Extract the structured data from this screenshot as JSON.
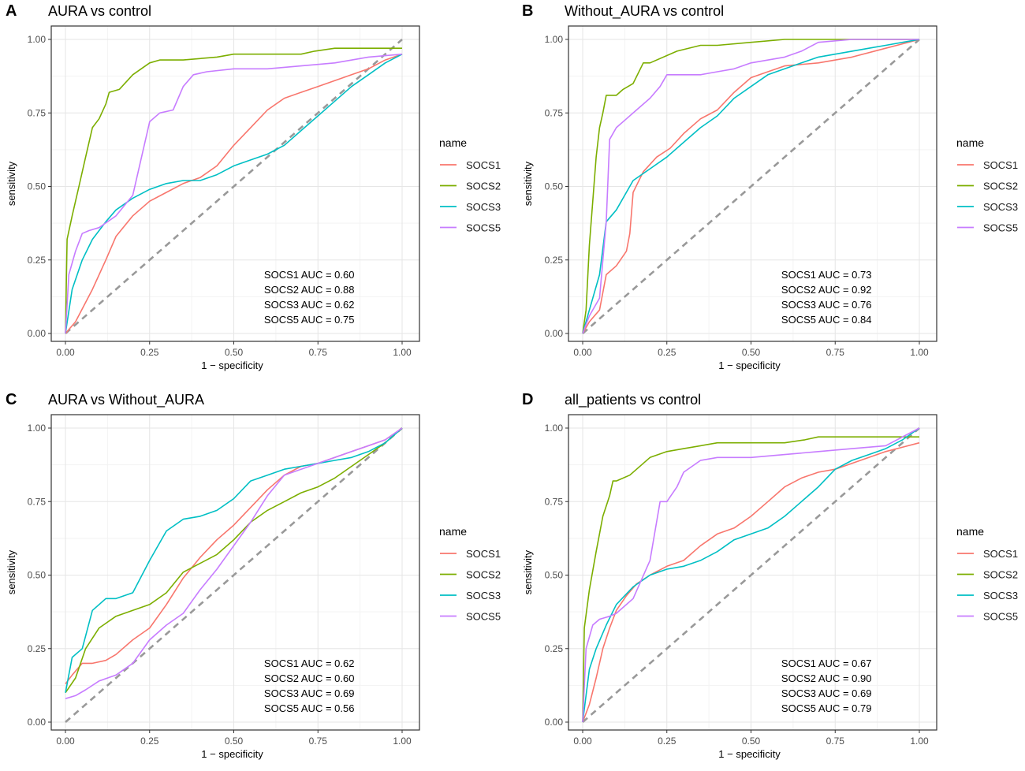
{
  "figure": {
    "panels": [
      {
        "letter": "A",
        "title": "AURA vs control"
      },
      {
        "letter": "B",
        "title": "Without_AURA vs control"
      },
      {
        "letter": "C",
        "title": "AURA vs Without_AURA"
      },
      {
        "letter": "D",
        "title": "all_patients vs control"
      }
    ]
  },
  "chart_data": [
    {
      "type": "line",
      "title": "AURA vs control",
      "xlabel": "1 − specificity",
      "ylabel": "sensitivity",
      "xlim": [
        0,
        1
      ],
      "ylim": [
        0,
        1
      ],
      "xticks": [
        "0.00",
        "0.25",
        "0.50",
        "0.75",
        "1.00"
      ],
      "yticks": [
        "0.00",
        "0.25",
        "0.50",
        "0.75",
        "1.00"
      ],
      "legend": {
        "title": "name",
        "position": "right"
      },
      "diagonal": true,
      "annotations": [
        "SOCS1 AUC = 0.60",
        "SOCS2 AUC = 0.88",
        "SOCS3 AUC = 0.62",
        "SOCS5 AUC = 0.75"
      ],
      "series": [
        {
          "name": "SOCS1",
          "color": "#F8766D",
          "x": [
            0,
            0.03,
            0.08,
            0.12,
            0.15,
            0.2,
            0.25,
            0.3,
            0.35,
            0.4,
            0.45,
            0.5,
            0.55,
            0.6,
            0.65,
            0.7,
            0.75,
            0.8,
            0.85,
            0.9,
            0.95,
            1.0
          ],
          "y": [
            0,
            0.04,
            0.15,
            0.25,
            0.33,
            0.4,
            0.45,
            0.48,
            0.51,
            0.53,
            0.57,
            0.64,
            0.7,
            0.76,
            0.8,
            0.82,
            0.84,
            0.86,
            0.88,
            0.9,
            0.93,
            0.95
          ]
        },
        {
          "name": "SOCS2",
          "color": "#7CAE00",
          "x": [
            0,
            0.005,
            0.02,
            0.04,
            0.06,
            0.08,
            0.1,
            0.12,
            0.13,
            0.16,
            0.2,
            0.25,
            0.28,
            0.35,
            0.45,
            0.5,
            0.6,
            0.7,
            0.74,
            0.8,
            0.9,
            1.0
          ],
          "y": [
            0,
            0.32,
            0.4,
            0.5,
            0.6,
            0.7,
            0.73,
            0.78,
            0.82,
            0.83,
            0.88,
            0.92,
            0.93,
            0.93,
            0.94,
            0.95,
            0.95,
            0.95,
            0.96,
            0.97,
            0.97,
            0.97
          ]
        },
        {
          "name": "SOCS3",
          "color": "#00BFC4",
          "x": [
            0,
            0.02,
            0.05,
            0.08,
            0.12,
            0.15,
            0.2,
            0.25,
            0.3,
            0.35,
            0.4,
            0.45,
            0.5,
            0.55,
            0.6,
            0.65,
            0.7,
            0.75,
            0.8,
            0.85,
            0.9,
            0.95,
            1.0
          ],
          "y": [
            0,
            0.15,
            0.25,
            0.32,
            0.38,
            0.42,
            0.46,
            0.49,
            0.51,
            0.52,
            0.52,
            0.54,
            0.57,
            0.59,
            0.61,
            0.64,
            0.69,
            0.74,
            0.79,
            0.84,
            0.88,
            0.92,
            0.95
          ]
        },
        {
          "name": "SOCS5",
          "color": "#C77CFF",
          "x": [
            0,
            0.01,
            0.03,
            0.05,
            0.07,
            0.1,
            0.15,
            0.2,
            0.25,
            0.28,
            0.32,
            0.35,
            0.38,
            0.42,
            0.5,
            0.6,
            0.7,
            0.8,
            0.9,
            1.0
          ],
          "y": [
            0,
            0.2,
            0.28,
            0.34,
            0.35,
            0.36,
            0.4,
            0.47,
            0.72,
            0.75,
            0.76,
            0.84,
            0.88,
            0.89,
            0.9,
            0.9,
            0.91,
            0.92,
            0.94,
            0.95
          ]
        }
      ]
    },
    {
      "type": "line",
      "title": "Without_AURA vs control",
      "xlabel": "1 − specificity",
      "ylabel": "sensitivity",
      "xlim": [
        0,
        1
      ],
      "ylim": [
        0,
        1
      ],
      "xticks": [
        "0.00",
        "0.25",
        "0.50",
        "0.75",
        "1.00"
      ],
      "yticks": [
        "0.00",
        "0.25",
        "0.50",
        "0.75",
        "1.00"
      ],
      "legend": {
        "title": "name",
        "position": "right"
      },
      "diagonal": true,
      "annotations": [
        "SOCS1 AUC = 0.73",
        "SOCS2 AUC = 0.92",
        "SOCS3 AUC = 0.76",
        "SOCS5 AUC = 0.84"
      ],
      "series": [
        {
          "name": "SOCS1",
          "color": "#F8766D",
          "x": [
            0,
            0.02,
            0.05,
            0.07,
            0.1,
            0.13,
            0.14,
            0.15,
            0.18,
            0.22,
            0.26,
            0.3,
            0.35,
            0.4,
            0.45,
            0.5,
            0.55,
            0.6,
            0.7,
            0.8,
            0.9,
            1.0
          ],
          "y": [
            0,
            0.04,
            0.08,
            0.2,
            0.23,
            0.28,
            0.34,
            0.48,
            0.55,
            0.6,
            0.63,
            0.68,
            0.73,
            0.76,
            0.82,
            0.87,
            0.89,
            0.91,
            0.92,
            0.94,
            0.97,
            1.0
          ]
        },
        {
          "name": "SOCS2",
          "color": "#7CAE00",
          "x": [
            0,
            0.01,
            0.02,
            0.03,
            0.04,
            0.05,
            0.06,
            0.07,
            0.1,
            0.12,
            0.15,
            0.18,
            0.2,
            0.28,
            0.35,
            0.4,
            0.5,
            0.6,
            0.7,
            0.8,
            0.9,
            1.0
          ],
          "y": [
            0,
            0.08,
            0.3,
            0.45,
            0.6,
            0.7,
            0.75,
            0.81,
            0.81,
            0.83,
            0.85,
            0.92,
            0.92,
            0.96,
            0.98,
            0.98,
            0.99,
            1.0,
            1.0,
            1.0,
            1.0,
            1.0
          ]
        },
        {
          "name": "SOCS3",
          "color": "#00BFC4",
          "x": [
            0,
            0.02,
            0.05,
            0.07,
            0.1,
            0.15,
            0.2,
            0.25,
            0.3,
            0.35,
            0.4,
            0.45,
            0.5,
            0.55,
            0.6,
            0.65,
            0.7,
            0.75,
            0.8,
            0.85,
            0.9,
            0.95,
            1.0
          ],
          "y": [
            0,
            0.08,
            0.2,
            0.38,
            0.42,
            0.52,
            0.56,
            0.6,
            0.65,
            0.7,
            0.74,
            0.8,
            0.84,
            0.88,
            0.9,
            0.92,
            0.94,
            0.95,
            0.96,
            0.97,
            0.98,
            0.99,
            1.0
          ]
        },
        {
          "name": "SOCS5",
          "color": "#C77CFF",
          "x": [
            0,
            0.02,
            0.05,
            0.07,
            0.08,
            0.1,
            0.13,
            0.16,
            0.2,
            0.23,
            0.25,
            0.3,
            0.35,
            0.4,
            0.45,
            0.5,
            0.6,
            0.65,
            0.7,
            0.8,
            0.9,
            1.0
          ],
          "y": [
            0,
            0.06,
            0.12,
            0.38,
            0.66,
            0.7,
            0.73,
            0.76,
            0.8,
            0.84,
            0.88,
            0.88,
            0.88,
            0.89,
            0.9,
            0.92,
            0.94,
            0.96,
            0.99,
            1.0,
            1.0,
            1.0
          ]
        }
      ]
    },
    {
      "type": "line",
      "title": "AURA vs Without_AURA",
      "xlabel": "1 − specificity",
      "ylabel": "sensitivity",
      "xlim": [
        0,
        1
      ],
      "ylim": [
        0,
        1
      ],
      "xticks": [
        "0.00",
        "0.25",
        "0.50",
        "0.75",
        "1.00"
      ],
      "yticks": [
        "0.00",
        "0.25",
        "0.50",
        "0.75",
        "1.00"
      ],
      "legend": {
        "title": "name",
        "position": "right"
      },
      "diagonal": true,
      "annotations": [
        "SOCS1 AUC = 0.62",
        "SOCS2 AUC = 0.60",
        "SOCS3 AUC = 0.69",
        "SOCS5 AUC = 0.56"
      ],
      "series": [
        {
          "name": "SOCS1",
          "color": "#F8766D",
          "x": [
            0,
            0.02,
            0.05,
            0.08,
            0.12,
            0.15,
            0.2,
            0.25,
            0.3,
            0.35,
            0.4,
            0.45,
            0.5,
            0.55,
            0.6,
            0.65,
            0.7,
            0.75,
            0.8,
            0.85,
            0.9,
            0.95,
            1.0
          ],
          "y": [
            0.13,
            0.16,
            0.2,
            0.2,
            0.21,
            0.23,
            0.28,
            0.32,
            0.4,
            0.49,
            0.56,
            0.62,
            0.67,
            0.73,
            0.79,
            0.84,
            0.87,
            0.88,
            0.9,
            0.92,
            0.94,
            0.96,
            1.0
          ]
        },
        {
          "name": "SOCS2",
          "color": "#7CAE00",
          "x": [
            0,
            0.03,
            0.06,
            0.1,
            0.15,
            0.2,
            0.25,
            0.3,
            0.35,
            0.4,
            0.45,
            0.5,
            0.55,
            0.6,
            0.65,
            0.7,
            0.75,
            0.8,
            0.85,
            0.9,
            0.95,
            1.0
          ],
          "y": [
            0.1,
            0.15,
            0.25,
            0.32,
            0.36,
            0.38,
            0.4,
            0.44,
            0.51,
            0.54,
            0.57,
            0.62,
            0.68,
            0.72,
            0.75,
            0.78,
            0.8,
            0.83,
            0.87,
            0.91,
            0.95,
            1.0
          ]
        },
        {
          "name": "SOCS3",
          "color": "#00BFC4",
          "x": [
            0,
            0.02,
            0.05,
            0.08,
            0.12,
            0.15,
            0.2,
            0.25,
            0.3,
            0.35,
            0.4,
            0.45,
            0.5,
            0.55,
            0.6,
            0.65,
            0.7,
            0.75,
            0.8,
            0.85,
            0.9,
            0.95,
            1.0
          ],
          "y": [
            0.1,
            0.22,
            0.25,
            0.38,
            0.42,
            0.42,
            0.44,
            0.55,
            0.65,
            0.69,
            0.7,
            0.72,
            0.76,
            0.82,
            0.84,
            0.86,
            0.87,
            0.88,
            0.89,
            0.9,
            0.92,
            0.95,
            1.0
          ]
        },
        {
          "name": "SOCS5",
          "color": "#C77CFF",
          "x": [
            0,
            0.03,
            0.06,
            0.1,
            0.15,
            0.2,
            0.25,
            0.3,
            0.35,
            0.4,
            0.45,
            0.5,
            0.55,
            0.6,
            0.65,
            0.7,
            0.75,
            0.8,
            0.85,
            0.9,
            0.95,
            1.0
          ],
          "y": [
            0.08,
            0.09,
            0.11,
            0.14,
            0.16,
            0.2,
            0.28,
            0.33,
            0.37,
            0.45,
            0.52,
            0.6,
            0.68,
            0.77,
            0.84,
            0.86,
            0.88,
            0.9,
            0.92,
            0.94,
            0.96,
            1.0
          ]
        }
      ]
    },
    {
      "type": "line",
      "title": "all_patients vs control",
      "xlabel": "1 − specificity",
      "ylabel": "sensitivity",
      "xlim": [
        0,
        1
      ],
      "ylim": [
        0,
        1
      ],
      "xticks": [
        "0.00",
        "0.25",
        "0.50",
        "0.75",
        "1.00"
      ],
      "yticks": [
        "0.00",
        "0.25",
        "0.50",
        "0.75",
        "1.00"
      ],
      "legend": {
        "title": "name",
        "position": "right"
      },
      "diagonal": true,
      "annotations": [
        "SOCS1 AUC = 0.67",
        "SOCS2 AUC = 0.90",
        "SOCS3 AUC = 0.69",
        "SOCS5 AUC = 0.79"
      ],
      "series": [
        {
          "name": "SOCS1",
          "color": "#F8766D",
          "x": [
            0,
            0.02,
            0.04,
            0.06,
            0.08,
            0.1,
            0.13,
            0.16,
            0.2,
            0.25,
            0.3,
            0.35,
            0.4,
            0.45,
            0.5,
            0.55,
            0.6,
            0.65,
            0.7,
            0.75,
            0.8,
            0.9,
            1.0
          ],
          "y": [
            0,
            0.06,
            0.15,
            0.25,
            0.32,
            0.38,
            0.43,
            0.47,
            0.5,
            0.53,
            0.55,
            0.6,
            0.64,
            0.66,
            0.7,
            0.75,
            0.8,
            0.83,
            0.85,
            0.86,
            0.88,
            0.92,
            0.95
          ]
        },
        {
          "name": "SOCS2",
          "color": "#7CAE00",
          "x": [
            0,
            0.005,
            0.02,
            0.04,
            0.06,
            0.08,
            0.09,
            0.1,
            0.14,
            0.2,
            0.25,
            0.3,
            0.4,
            0.5,
            0.6,
            0.66,
            0.7,
            0.8,
            0.9,
            1.0
          ],
          "y": [
            0,
            0.32,
            0.45,
            0.58,
            0.7,
            0.77,
            0.82,
            0.82,
            0.84,
            0.9,
            0.92,
            0.93,
            0.95,
            0.95,
            0.95,
            0.96,
            0.97,
            0.97,
            0.97,
            0.97
          ]
        },
        {
          "name": "SOCS3",
          "color": "#00BFC4",
          "x": [
            0,
            0.02,
            0.04,
            0.07,
            0.1,
            0.15,
            0.2,
            0.25,
            0.3,
            0.35,
            0.4,
            0.45,
            0.5,
            0.55,
            0.6,
            0.65,
            0.7,
            0.75,
            0.8,
            0.85,
            0.9,
            0.95,
            1.0
          ],
          "y": [
            0,
            0.18,
            0.25,
            0.33,
            0.4,
            0.46,
            0.5,
            0.52,
            0.53,
            0.55,
            0.58,
            0.62,
            0.64,
            0.66,
            0.7,
            0.75,
            0.8,
            0.86,
            0.89,
            0.91,
            0.93,
            0.96,
            1.0
          ]
        },
        {
          "name": "SOCS5",
          "color": "#C77CFF",
          "x": [
            0,
            0.01,
            0.03,
            0.05,
            0.08,
            0.1,
            0.15,
            0.2,
            0.23,
            0.25,
            0.28,
            0.3,
            0.35,
            0.4,
            0.5,
            0.6,
            0.7,
            0.8,
            0.9,
            1.0
          ],
          "y": [
            0,
            0.25,
            0.33,
            0.35,
            0.36,
            0.37,
            0.42,
            0.55,
            0.75,
            0.75,
            0.8,
            0.85,
            0.89,
            0.9,
            0.9,
            0.91,
            0.92,
            0.93,
            0.94,
            1.0
          ]
        }
      ]
    }
  ]
}
